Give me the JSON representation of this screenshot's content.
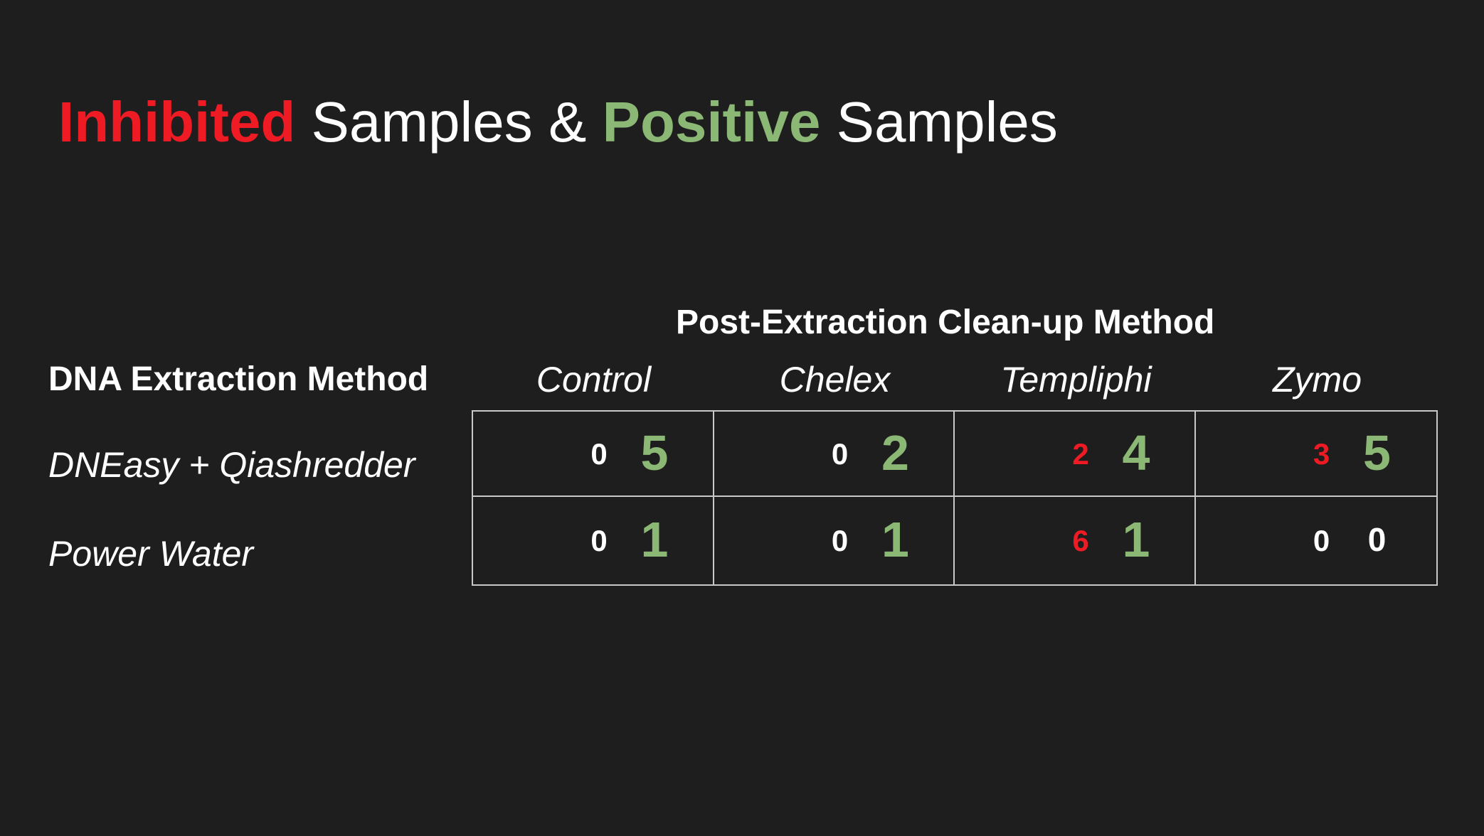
{
  "title": {
    "part1": "Inhibited",
    "part2": "Samples &",
    "part3": "Positive",
    "part4": "Samples"
  },
  "colors": {
    "inhibited": "#ee1b24",
    "positive": "#8bb874",
    "neutral": "#ffffff"
  },
  "table": {
    "column_group_header": "Post-Extraction Clean-up Method",
    "row_group_header": "DNA Extraction Method",
    "columns": [
      "Control",
      "Chelex",
      "Templiphi",
      "Zymo"
    ],
    "rows": [
      {
        "label": "DNEasy + Qiashredder",
        "cells": [
          {
            "inhibited": "0",
            "positive": "5"
          },
          {
            "inhibited": "0",
            "positive": "2"
          },
          {
            "inhibited": "2",
            "positive": "4"
          },
          {
            "inhibited": "3",
            "positive": "5"
          }
        ]
      },
      {
        "label": "Power Water",
        "cells": [
          {
            "inhibited": "0",
            "positive": "1"
          },
          {
            "inhibited": "0",
            "positive": "1"
          },
          {
            "inhibited": "6",
            "positive": "1"
          },
          {
            "inhibited": "0",
            "positive": "0"
          }
        ]
      }
    ]
  }
}
